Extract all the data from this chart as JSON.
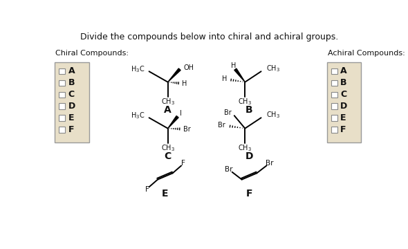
{
  "title": "Divide the compounds below into chiral and achiral groups.",
  "title_fontsize": 9,
  "chiral_label": "Chiral Compounds:",
  "achiral_label": "Achiral Compounds:",
  "checkbox_labels": [
    "A",
    "B",
    "C",
    "D",
    "E",
    "F"
  ],
  "bg_color": "#ffffff",
  "box_fill": "#e8dfc8",
  "box_edge": "#aaaaaa",
  "text_color": "#111111",
  "compound_label_fontsize": 10,
  "sub_fontsize": 7
}
